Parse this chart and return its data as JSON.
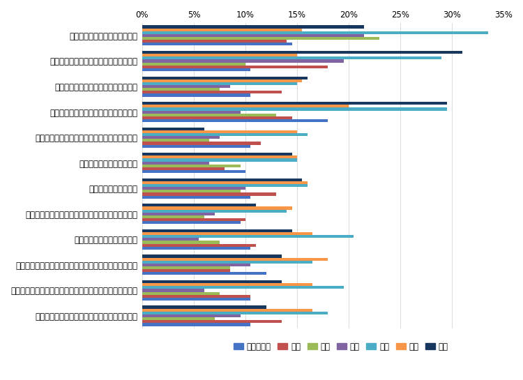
{
  "categories": [
    "助成金や補助金などの財源獲得",
    "モデル事業や国家戦略特区などへの採択",
    "事務・事業の再編・整理、廃止・統合",
    "民間委託の推進や指定管理者制度の活用",
    "業務の見直しや内部管理業務の効率化・集約化",
    "業務量に見合った人員配置",
    "専門人材の育成・配置",
    "公務外人材の活用（中途採用や兼業・副業の活用）",
    "地域住民や民間企業との連携",
    "業務のデジタル化（ペーパーレス化、クラウド化など）",
    "テクノロジーの活用（市販サービス・アプリの活用など）",
    "行政が取得している／取得できるデータの活用"
  ],
  "series": {
    "総務・企画": [
      14.5,
      10.5,
      10.5,
      18.0,
      10.5,
      10.0,
      10.5,
      9.5,
      10.5,
      12.0,
      10.5,
      10.5
    ],
    "税務": [
      14.0,
      18.0,
      13.5,
      14.5,
      11.5,
      8.0,
      13.0,
      10.0,
      11.0,
      8.5,
      10.5,
      13.5
    ],
    "民生": [
      23.0,
      10.0,
      7.5,
      13.0,
      6.5,
      9.5,
      9.5,
      6.0,
      7.5,
      8.5,
      7.5,
      7.0
    ],
    "衛生": [
      21.5,
      19.5,
      8.5,
      9.5,
      7.5,
      6.5,
      10.0,
      7.0,
      5.5,
      10.5,
      6.0,
      9.5
    ],
    "土木": [
      33.5,
      29.0,
      15.0,
      29.5,
      16.0,
      15.0,
      16.0,
      14.0,
      20.5,
      16.5,
      19.5,
      18.0
    ],
    "教育": [
      15.5,
      15.0,
      15.5,
      20.0,
      15.0,
      15.0,
      16.0,
      14.5,
      16.5,
      18.0,
      16.5,
      16.5
    ],
    "消防": [
      21.5,
      31.0,
      16.0,
      29.5,
      6.0,
      14.5,
      15.5,
      11.0,
      14.5,
      13.5,
      13.5,
      12.0
    ]
  },
  "colors": {
    "総務・企画": "#4472C4",
    "税務": "#C0504D",
    "民生": "#9BBB59",
    "衛生": "#8064A2",
    "土木": "#4BACC6",
    "教育": "#F79646",
    "消防": "#17375E"
  },
  "xlim": [
    0,
    35
  ],
  "xticks": [
    0,
    5,
    10,
    15,
    20,
    25,
    30,
    35
  ],
  "xlabel_format": "%",
  "legend_order": [
    "総務・企画",
    "税務",
    "民生",
    "衛生",
    "土木",
    "教育",
    "消防"
  ]
}
